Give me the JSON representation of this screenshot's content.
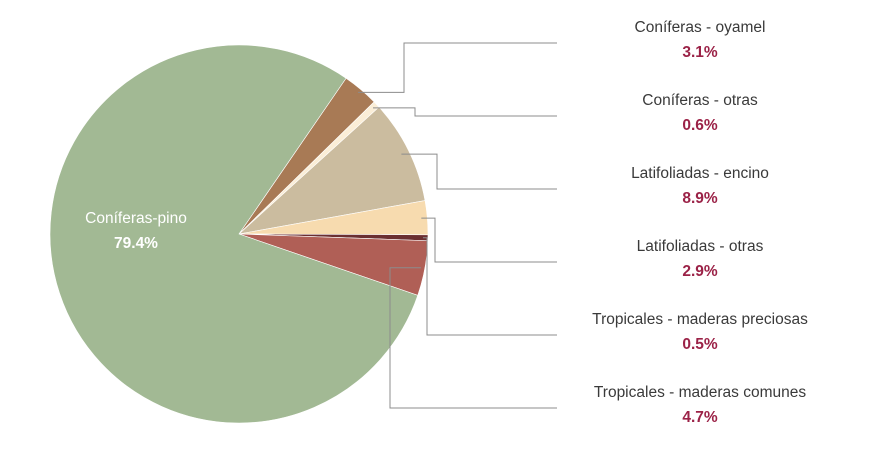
{
  "chart_data": {
    "type": "pie",
    "title": "",
    "slices": [
      {
        "label": "Coníferas-pino",
        "value": 79.4,
        "value_label": "79.4%",
        "color": "#a2b994"
      },
      {
        "label": "Coníferas - oyamel",
        "value": 3.1,
        "value_label": "3.1%",
        "color": "#a87a55"
      },
      {
        "label": "Coníferas - otras",
        "value": 0.6,
        "value_label": "0.6%",
        "color": "#fbeed7"
      },
      {
        "label": "Latifoliadas - encino",
        "value": 8.9,
        "value_label": "8.9%",
        "color": "#cbbc9f"
      },
      {
        "label": "Latifoliadas - otras",
        "value": 2.9,
        "value_label": "2.9%",
        "color": "#f7dbaf"
      },
      {
        "label": "Tropicales - maderas preciosas",
        "value": 0.5,
        "value_label": "0.5%",
        "color": "#6b2f31"
      },
      {
        "label": "Tropicales - maderas comunes",
        "value": 4.7,
        "value_label": "4.7%",
        "color": "#b05f56"
      }
    ],
    "value_label_color": "#9b2247",
    "label_placement": "right with leader lines; largest slice labeled inside"
  }
}
